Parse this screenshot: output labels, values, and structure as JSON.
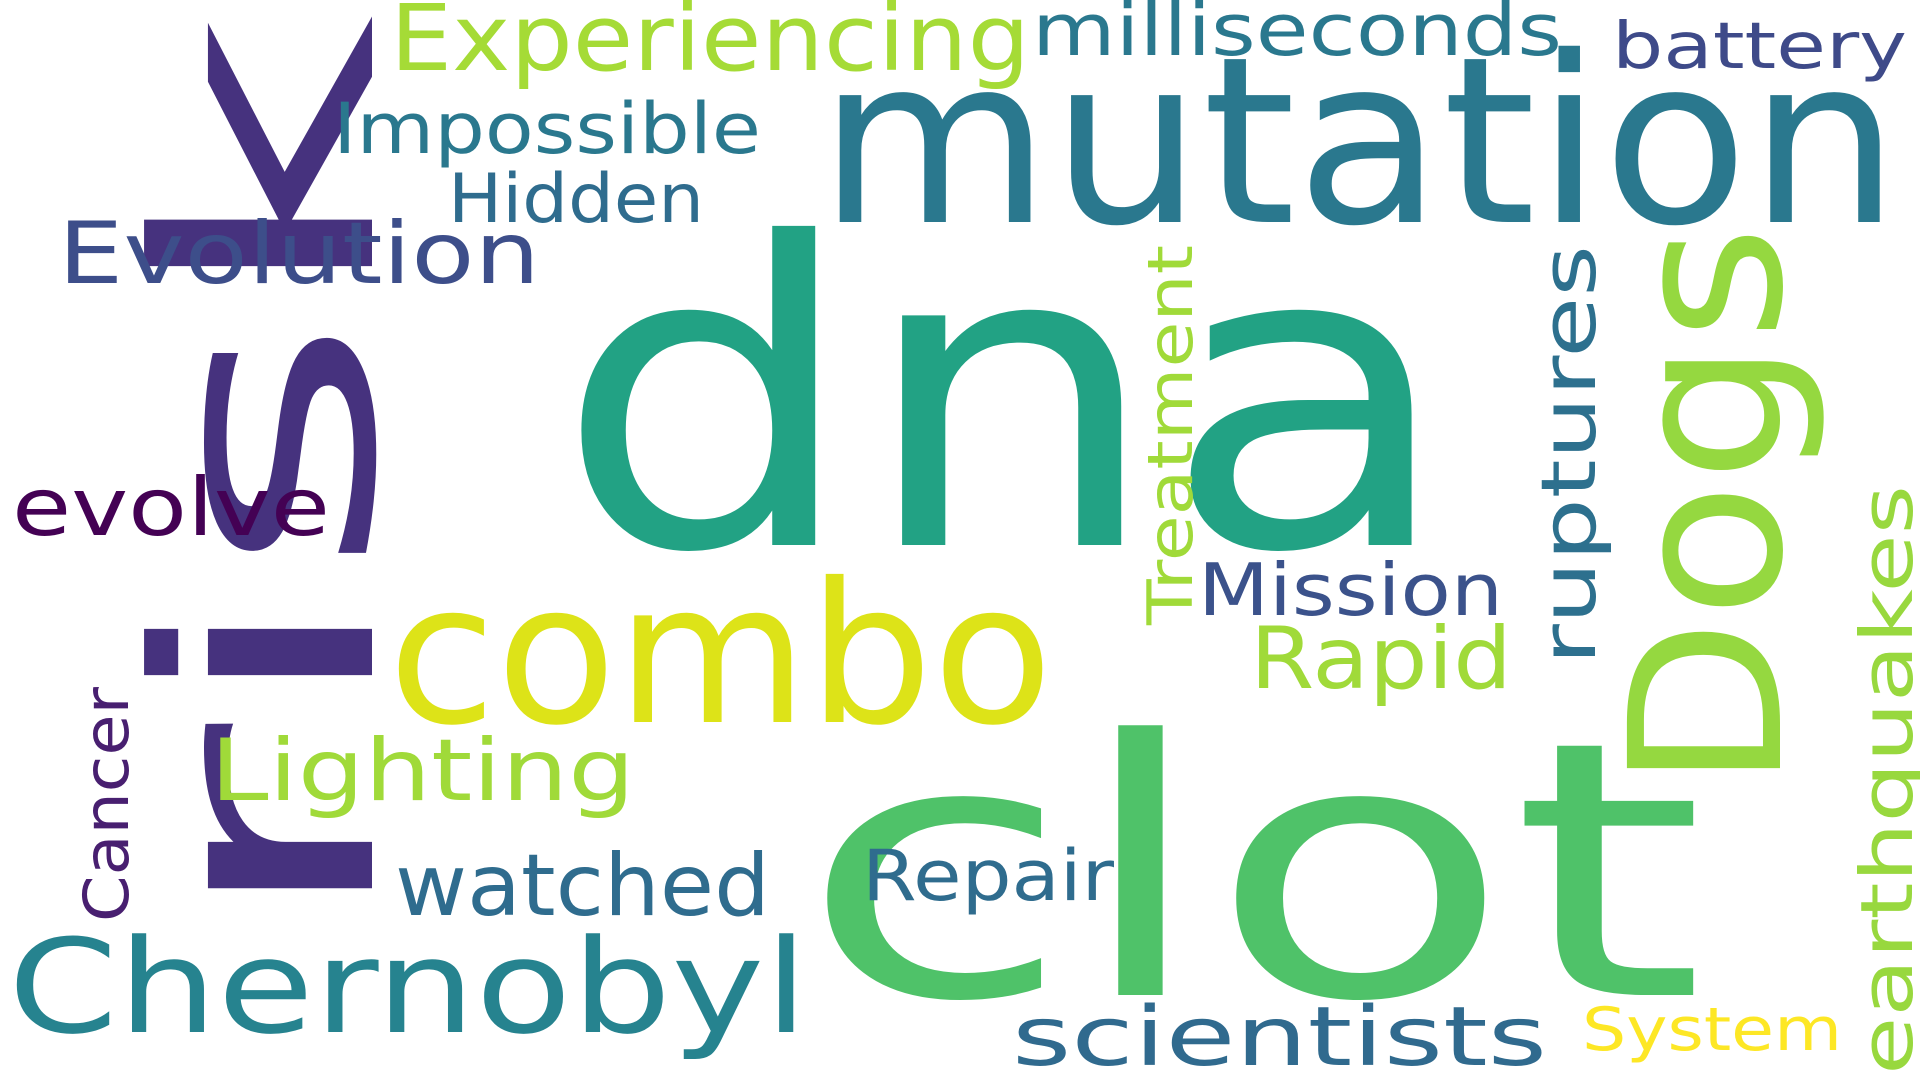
{
  "words": [
    {
      "text": "dna",
      "color": "#22a284"
    },
    {
      "text": "clot",
      "color": "#4fc269"
    },
    {
      "text": "risk",
      "color": "#46327e"
    },
    {
      "text": "mutation",
      "color": "#2a788e"
    },
    {
      "text": "combo",
      "color": "#dde318"
    },
    {
      "text": "Dogs",
      "color": "#95d840"
    },
    {
      "text": "Chernobyl",
      "color": "#26838f"
    },
    {
      "text": "Experiencing",
      "color": "#a5db36"
    },
    {
      "text": "milliseconds",
      "color": "#2a788e"
    },
    {
      "text": "battery",
      "color": "#3e4a89"
    },
    {
      "text": "Impossible",
      "color": "#2a788e"
    },
    {
      "text": "Hidden",
      "color": "#2f6c8e"
    },
    {
      "text": "Evolution",
      "color": "#3d4e8a"
    },
    {
      "text": "evolve",
      "color": "#440154"
    },
    {
      "text": "Treatment",
      "color": "#a0da39"
    },
    {
      "text": "ruptures",
      "color": "#2d708e"
    },
    {
      "text": "Mission",
      "color": "#3b528b"
    },
    {
      "text": "Rapid",
      "color": "#a0da39"
    },
    {
      "text": "Lighting",
      "color": "#a0da39"
    },
    {
      "text": "Cancer",
      "color": "#481f70"
    },
    {
      "text": "watched",
      "color": "#2f6c8e"
    },
    {
      "text": "Repair",
      "color": "#2f6c8e"
    },
    {
      "text": "earthquakes",
      "color": "#98d83e"
    },
    {
      "text": "scientists",
      "color": "#306a8e"
    },
    {
      "text": "System",
      "color": "#fde725"
    }
  ]
}
